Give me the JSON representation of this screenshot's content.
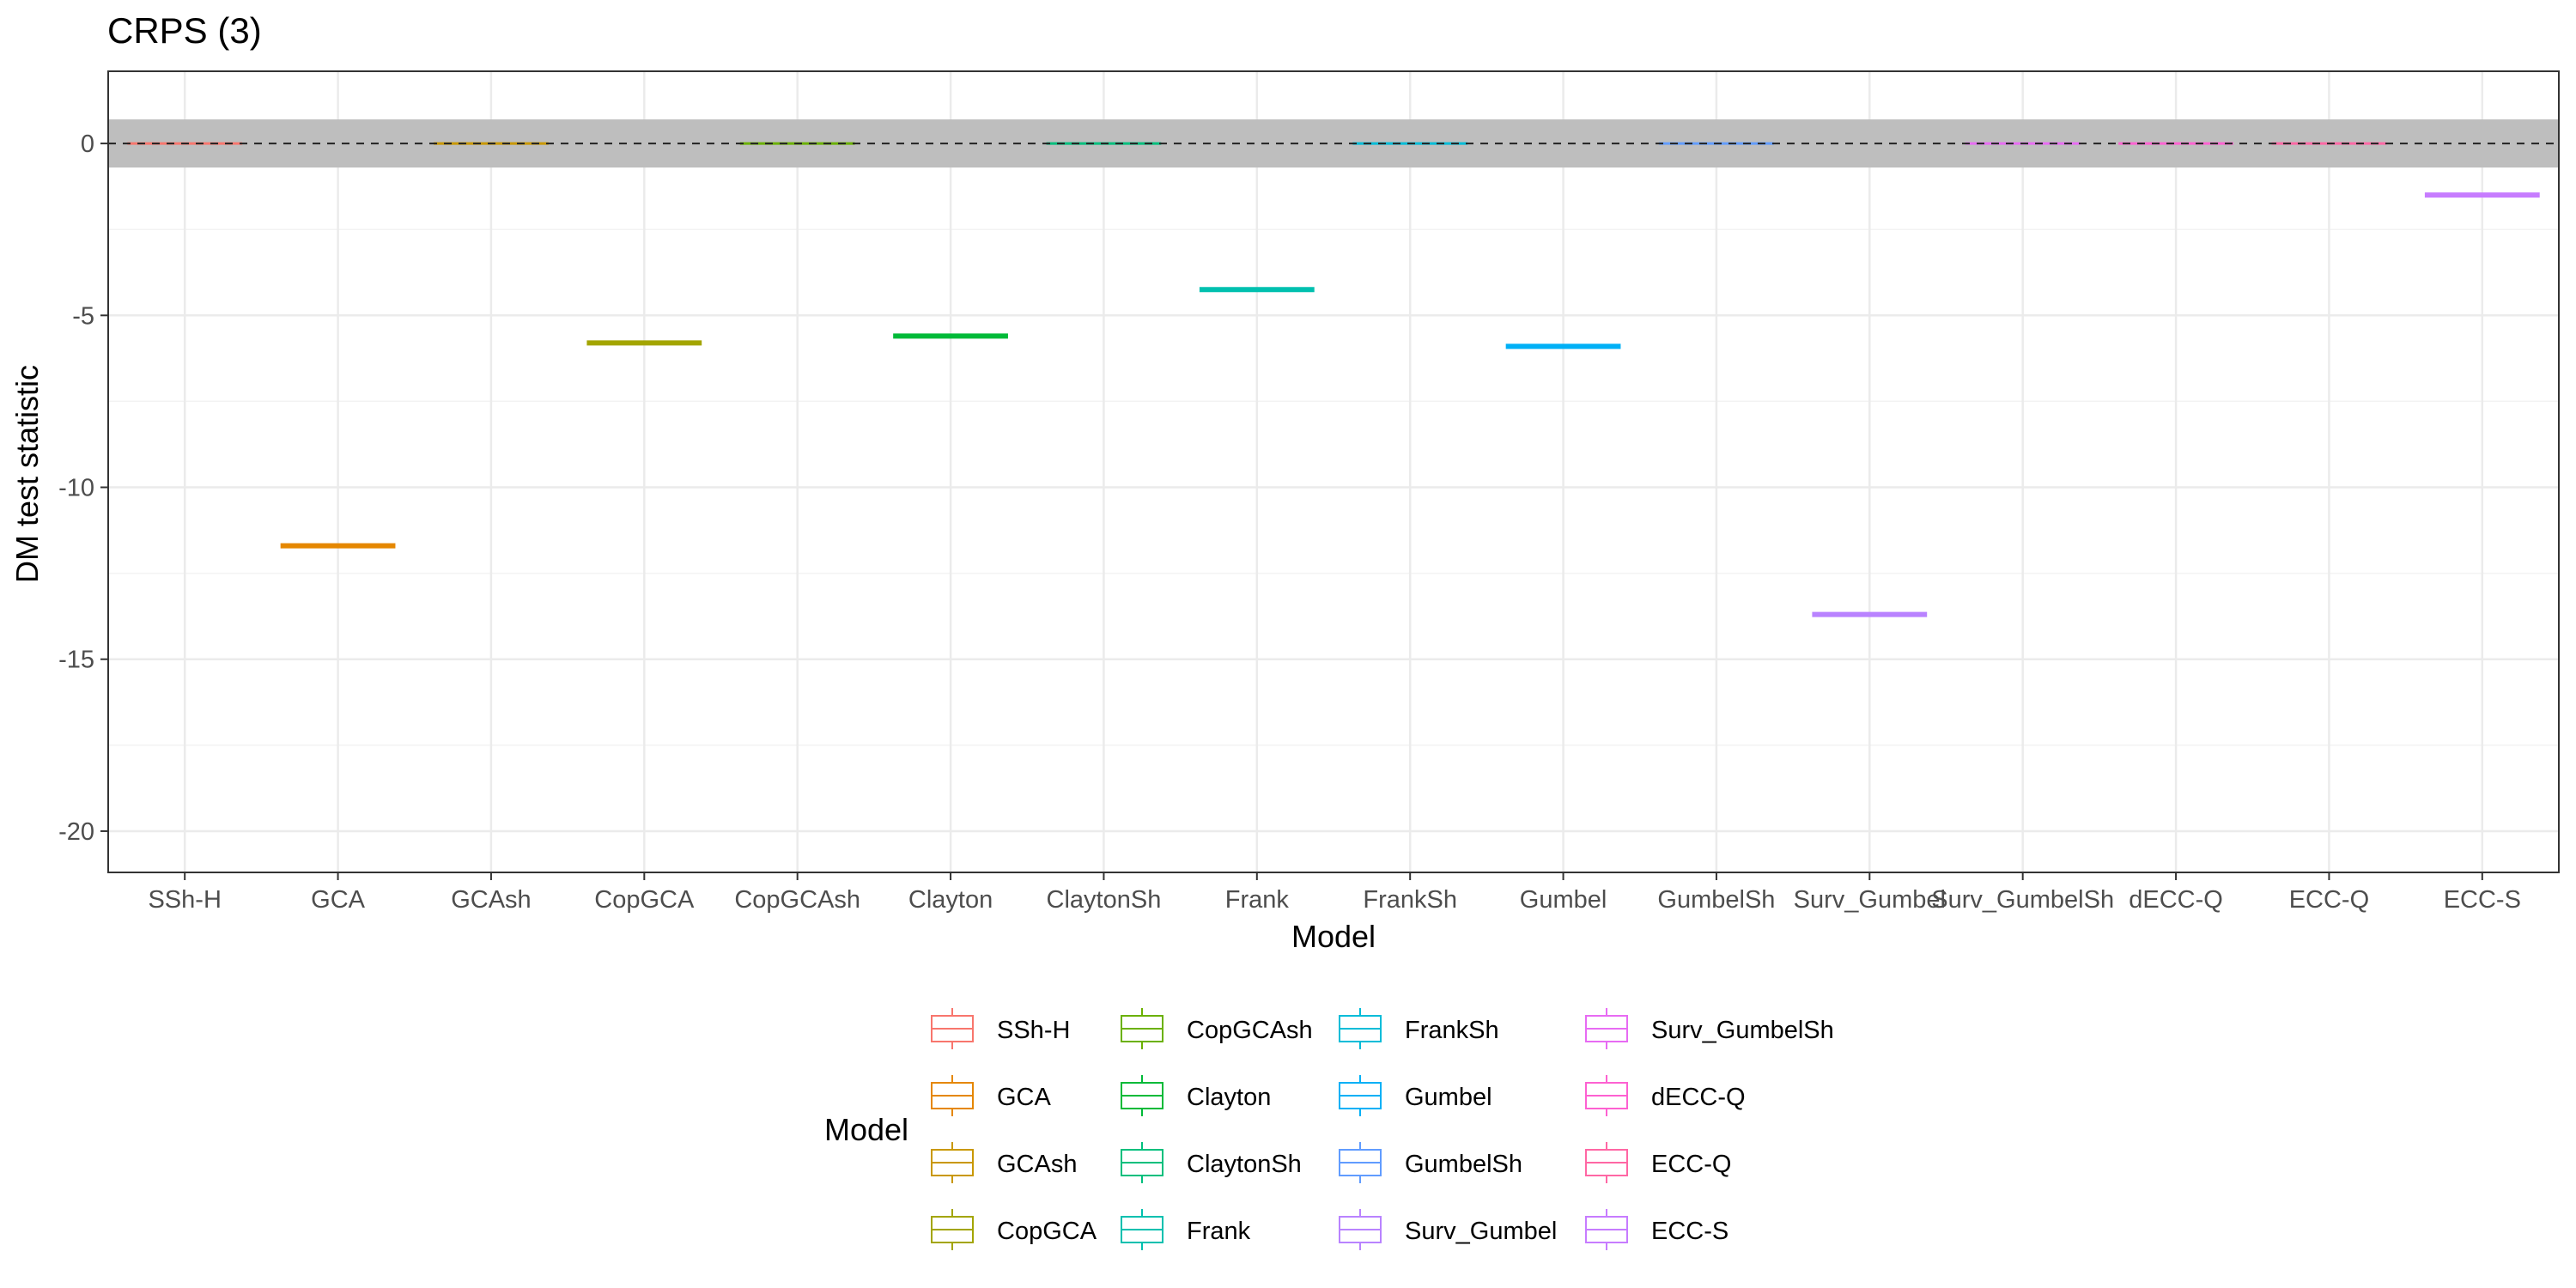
{
  "chart_data": {
    "type": "boxplot",
    "title": "CRPS (3)",
    "xlabel": "Model",
    "ylabel": "DM test statistic",
    "ylim": [
      -21.2,
      2.1
    ],
    "yticks": [
      0,
      -5,
      -10,
      -15,
      -20
    ],
    "ytick_labels": [
      "0",
      "-5",
      "-10",
      "-15",
      "-20"
    ],
    "grid": true,
    "reference_line": 0,
    "reference_band": [
      -0.7,
      0.7
    ],
    "categories": [
      "SSh-H",
      "GCA",
      "GCAsh",
      "CopGCA",
      "CopGCAsh",
      "Clayton",
      "ClaytonSh",
      "Frank",
      "FrankSh",
      "Gumbel",
      "GumbelSh",
      "Surv_Gumbel",
      "Surv_GumbelSh",
      "dECC-Q",
      "ECC-Q",
      "ECC-S"
    ],
    "values": [
      0,
      -11.7,
      0,
      -5.8,
      0,
      -5.6,
      0,
      -4.25,
      0,
      -5.9,
      0,
      -13.7,
      0,
      0,
      0,
      -1.5
    ],
    "colors": [
      "#F8766D",
      "#E58700",
      "#C99800",
      "#A3A500",
      "#6BB100",
      "#00BA38",
      "#00BF7D",
      "#00C0AF",
      "#00BCD8",
      "#00B0F6",
      "#619CFF",
      "#B983FF",
      "#E76BF3",
      "#FD61D1",
      "#FF67A4",
      "#C77CFF"
    ],
    "legend": {
      "title": "Model",
      "position": "bottom",
      "entries": [
        "SSh-H",
        "GCA",
        "GCAsh",
        "CopGCA",
        "CopGCAsh",
        "Clayton",
        "ClaytonSh",
        "Frank",
        "FrankSh",
        "Gumbel",
        "GumbelSh",
        "Surv_Gumbel",
        "Surv_GumbelSh",
        "dECC-Q",
        "ECC-Q",
        "ECC-S"
      ]
    }
  }
}
